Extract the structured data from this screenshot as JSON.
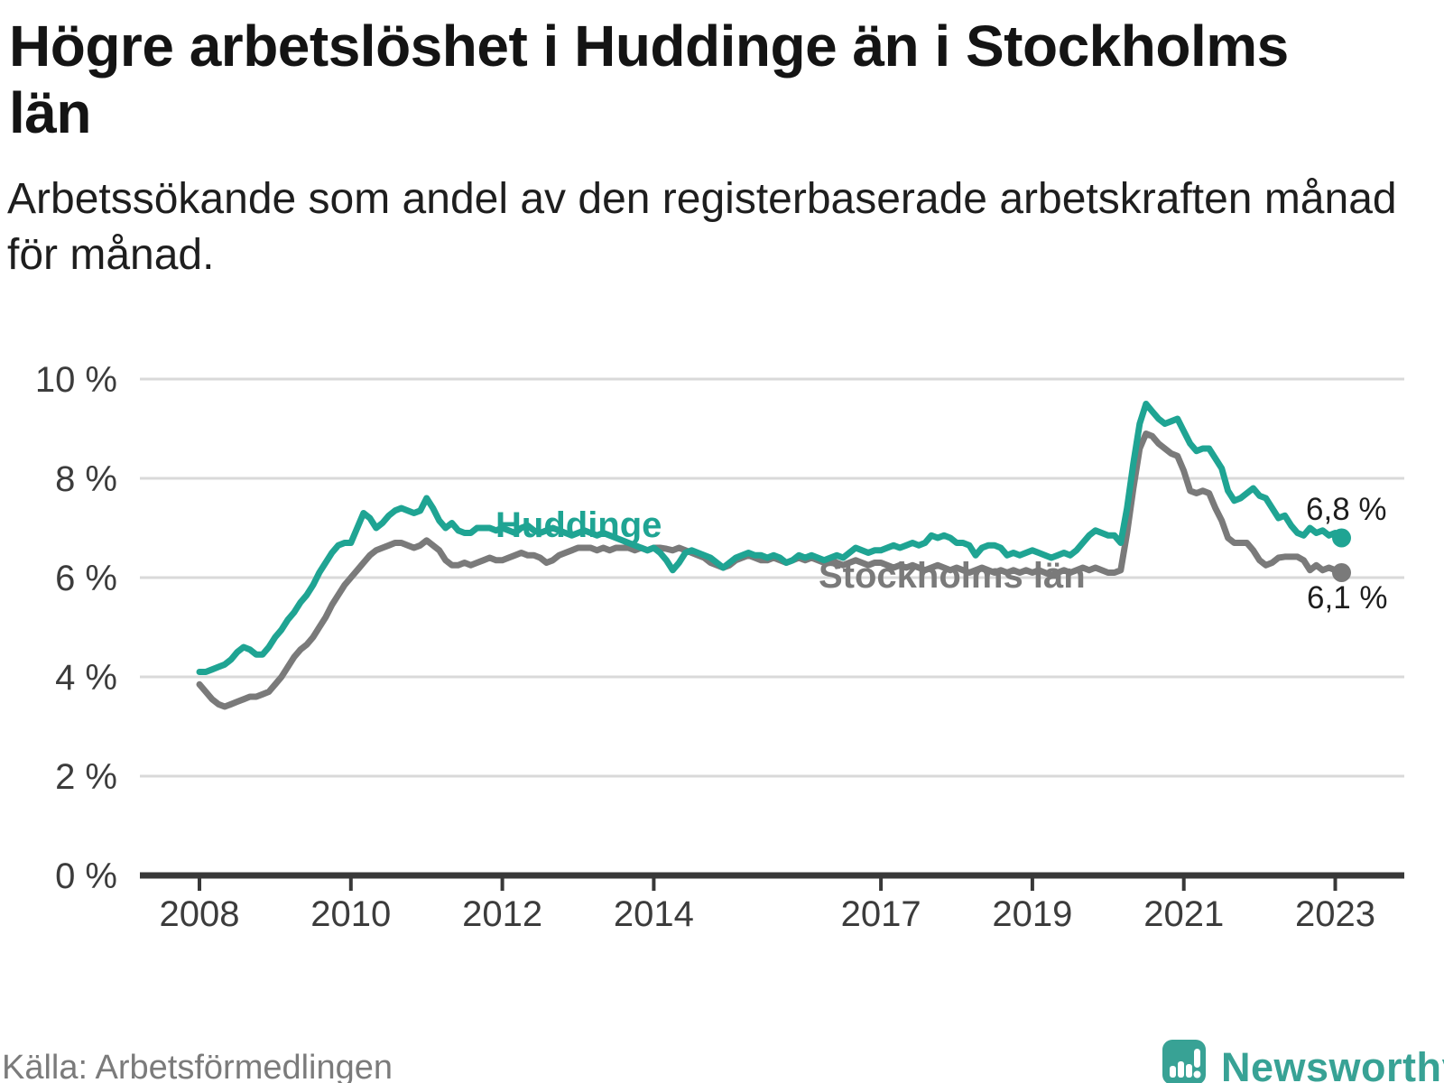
{
  "header": {
    "title": "Högre arbetslöshet i Huddinge än i Stockholms län",
    "subtitle": "Arbetssökande som andel av den registerbaserade arbetskraften månad för månad."
  },
  "annotations": {
    "huddinge_label": "Huddinge",
    "stockholm_label": "Stockholms län",
    "huddinge_value": "6,8 %",
    "stockholm_value": "6,1 %"
  },
  "footer": {
    "source": "Källa: Arbetsförmedlingen",
    "brand": "Newsworthy"
  },
  "colors": {
    "huddinge_teal": "#1fa493",
    "stockholm_gray": "#7a7a7a",
    "gridline": "#d9d9d9",
    "axis": "#383838",
    "value_label": "#1d1d1d",
    "brand_teal": "#38a295"
  },
  "chart_data": {
    "type": "line",
    "title": "Högre arbetslöshet i Huddinge än i Stockholms län",
    "subtitle": "Arbetssökande som andel av den registerbaserade arbetskraften månad för månad.",
    "unit": "%",
    "frequency": "monthly",
    "x_start": "2008-01",
    "x_end": "2023-02",
    "ylim": [
      0,
      10
    ],
    "grid": "horizontal",
    "legend_position": "inline-labels",
    "x_tick_years": [
      2008,
      2010,
      2012,
      2014,
      2017,
      2019,
      2021,
      2023
    ],
    "x_tick_labels": [
      "2008",
      "2010",
      "2012",
      "2014",
      "2017",
      "2019",
      "2021",
      "2023"
    ],
    "y_ticks": [
      0,
      2,
      4,
      6,
      8,
      10
    ],
    "y_tick_labels": [
      "0 %",
      "2 %",
      "4 %",
      "6 %",
      "8 %",
      "10 %"
    ],
    "series": [
      {
        "name": "Huddinge",
        "slug": "huddinge",
        "color": "#1fa493",
        "end_value": 6.8,
        "end_label": "6,8 %",
        "values": [
          4.1,
          4.1,
          4.15,
          4.2,
          4.25,
          4.35,
          4.5,
          4.6,
          4.55,
          4.45,
          4.45,
          4.6,
          4.8,
          4.95,
          5.15,
          5.3,
          5.5,
          5.65,
          5.85,
          6.1,
          6.3,
          6.5,
          6.65,
          6.7,
          6.7,
          7.0,
          7.3,
          7.2,
          7.0,
          7.1,
          7.25,
          7.35,
          7.4,
          7.35,
          7.3,
          7.35,
          7.6,
          7.4,
          7.15,
          7.0,
          7.1,
          6.95,
          6.9,
          6.9,
          7.0,
          7.0,
          7.0,
          6.95,
          7.0,
          6.95,
          6.9,
          7.0,
          7.05,
          6.95,
          6.9,
          6.95,
          7.0,
          6.95,
          6.9,
          6.85,
          6.9,
          6.95,
          6.9,
          6.85,
          6.9,
          6.85,
          6.8,
          6.75,
          6.7,
          6.65,
          6.6,
          6.55,
          6.6,
          6.5,
          6.35,
          6.15,
          6.3,
          6.5,
          6.55,
          6.5,
          6.45,
          6.4,
          6.3,
          6.2,
          6.3,
          6.4,
          6.45,
          6.5,
          6.45,
          6.45,
          6.4,
          6.45,
          6.4,
          6.3,
          6.35,
          6.45,
          6.4,
          6.45,
          6.4,
          6.35,
          6.4,
          6.45,
          6.4,
          6.5,
          6.6,
          6.55,
          6.5,
          6.55,
          6.55,
          6.6,
          6.65,
          6.6,
          6.65,
          6.7,
          6.65,
          6.7,
          6.85,
          6.8,
          6.85,
          6.8,
          6.7,
          6.7,
          6.65,
          6.45,
          6.6,
          6.65,
          6.65,
          6.6,
          6.45,
          6.5,
          6.45,
          6.5,
          6.55,
          6.5,
          6.45,
          6.4,
          6.45,
          6.5,
          6.45,
          6.55,
          6.7,
          6.85,
          6.95,
          6.9,
          6.85,
          6.85,
          6.7,
          7.4,
          8.3,
          9.1,
          9.5,
          9.35,
          9.2,
          9.1,
          9.15,
          9.2,
          8.95,
          8.7,
          8.55,
          8.6,
          8.6,
          8.4,
          8.2,
          7.75,
          7.55,
          7.6,
          7.7,
          7.8,
          7.65,
          7.6,
          7.4,
          7.2,
          7.25,
          7.05,
          6.9,
          6.85,
          7.0,
          6.9,
          6.95,
          6.85,
          6.9,
          6.8
        ]
      },
      {
        "name": "Stockholms län",
        "slug": "stockholms-lan",
        "color": "#7a7a7a",
        "end_value": 6.1,
        "end_label": "6,1 %",
        "values": [
          3.85,
          3.7,
          3.55,
          3.45,
          3.4,
          3.45,
          3.5,
          3.55,
          3.6,
          3.6,
          3.65,
          3.7,
          3.85,
          4.0,
          4.2,
          4.4,
          4.55,
          4.65,
          4.8,
          5.0,
          5.2,
          5.45,
          5.65,
          5.85,
          6.0,
          6.15,
          6.3,
          6.45,
          6.55,
          6.6,
          6.65,
          6.7,
          6.7,
          6.65,
          6.6,
          6.65,
          6.75,
          6.65,
          6.55,
          6.35,
          6.25,
          6.25,
          6.3,
          6.25,
          6.3,
          6.35,
          6.4,
          6.35,
          6.35,
          6.4,
          6.45,
          6.5,
          6.45,
          6.45,
          6.4,
          6.3,
          6.35,
          6.45,
          6.5,
          6.55,
          6.6,
          6.6,
          6.6,
          6.55,
          6.6,
          6.55,
          6.6,
          6.6,
          6.6,
          6.55,
          6.6,
          6.55,
          6.6,
          6.6,
          6.58,
          6.55,
          6.6,
          6.55,
          6.5,
          6.45,
          6.4,
          6.3,
          6.25,
          6.2,
          6.25,
          6.35,
          6.4,
          6.45,
          6.4,
          6.35,
          6.35,
          6.4,
          6.35,
          6.3,
          6.35,
          6.4,
          6.35,
          6.4,
          6.35,
          6.3,
          6.35,
          6.3,
          6.25,
          6.3,
          6.35,
          6.3,
          6.25,
          6.3,
          6.3,
          6.25,
          6.2,
          6.25,
          6.2,
          6.25,
          6.2,
          6.15,
          6.2,
          6.25,
          6.2,
          6.15,
          6.2,
          6.15,
          6.1,
          6.15,
          6.2,
          6.15,
          6.1,
          6.15,
          6.1,
          6.15,
          6.1,
          6.15,
          6.1,
          6.15,
          6.1,
          6.05,
          6.1,
          6.15,
          6.1,
          6.15,
          6.2,
          6.15,
          6.2,
          6.15,
          6.1,
          6.1,
          6.15,
          6.9,
          7.8,
          8.6,
          8.9,
          8.85,
          8.7,
          8.6,
          8.5,
          8.45,
          8.15,
          7.75,
          7.7,
          7.75,
          7.7,
          7.4,
          7.15,
          6.8,
          6.7,
          6.7,
          6.7,
          6.55,
          6.35,
          6.25,
          6.3,
          6.4,
          6.42,
          6.42,
          6.42,
          6.35,
          6.15,
          6.25,
          6.15,
          6.2,
          6.15,
          6.1
        ]
      }
    ]
  }
}
